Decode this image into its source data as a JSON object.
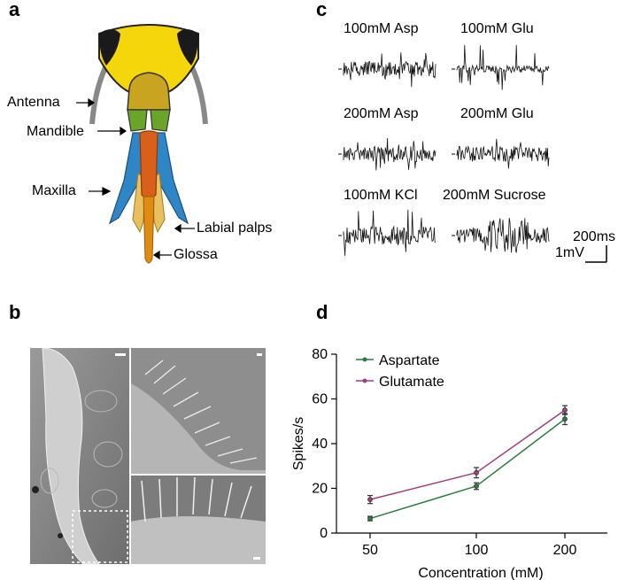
{
  "panels": {
    "a": "a",
    "b": "b",
    "c": "c",
    "d": "d"
  },
  "anatomy_labels": {
    "antenna": "Antenna",
    "mandible": "Mandible",
    "maxilla": "Maxilla",
    "labial_palps": "Labial palps",
    "glossa": "Glossa"
  },
  "traces": [
    {
      "label": "100mM Asp",
      "style": "dense"
    },
    {
      "label": "100mM Glu",
      "style": "spiky"
    },
    {
      "label": "200mM Asp",
      "style": "dense"
    },
    {
      "label": "200mM Glu",
      "style": "dense"
    },
    {
      "label": "100mM KCl",
      "style": "mixed"
    },
    {
      "label": "200mM Sucrose",
      "style": "burst"
    }
  ],
  "scalebar": {
    "time": "200ms",
    "voltage": "1mV"
  },
  "colors": {
    "head": "#f0d000",
    "eyes": "#1a1a1a",
    "mandible": "#6aa52a",
    "maxilla": "#2f86c6",
    "glossa": "#e08c12",
    "aspartate": "#2a7d3c",
    "glutamate": "#a0407a"
  },
  "chart_data": {
    "type": "line",
    "x": [
      50,
      100,
      200
    ],
    "categories": [
      "50",
      "100",
      "200"
    ],
    "series": [
      {
        "name": "Aspartate",
        "values": [
          6.5,
          21,
          51
        ],
        "errors": [
          1,
          1.5,
          2.5
        ]
      },
      {
        "name": "Glutamate",
        "values": [
          15,
          27,
          55
        ],
        "errors": [
          1.8,
          2.3,
          2
        ]
      }
    ],
    "xlabel": "Concentration (mM)",
    "ylabel": "Spikes/s",
    "ylim": [
      0,
      80
    ],
    "yticks": [
      0,
      20,
      40,
      60,
      80
    ],
    "legend": "top-left",
    "grid": false
  }
}
